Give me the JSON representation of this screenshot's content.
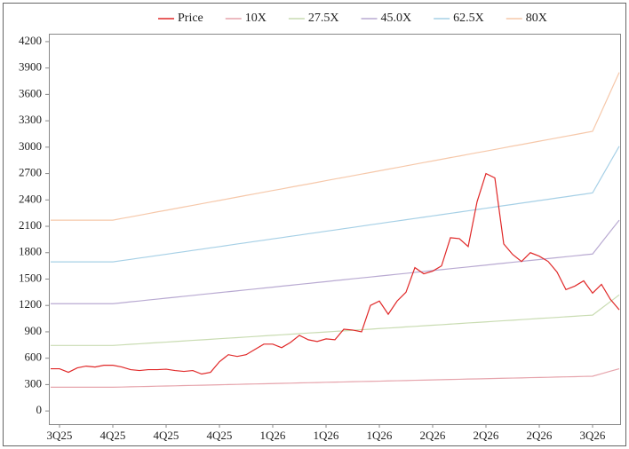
{
  "chart_data": {
    "type": "line",
    "categories": [
      null,
      "3Q25",
      null,
      null,
      null,
      null,
      null,
      "4Q25",
      null,
      null,
      null,
      null,
      null,
      "4Q25",
      null,
      null,
      null,
      null,
      null,
      "4Q25",
      null,
      null,
      null,
      null,
      null,
      "1Q26",
      null,
      null,
      null,
      null,
      null,
      "1Q26",
      null,
      null,
      null,
      null,
      null,
      "1Q26",
      null,
      null,
      null,
      null,
      null,
      "2Q26",
      null,
      null,
      null,
      null,
      null,
      "2Q26",
      null,
      null,
      null,
      null,
      null,
      "2Q26",
      null,
      null,
      null,
      null,
      null,
      "3Q26",
      null,
      null,
      null
    ],
    "series": [
      {
        "name": "Price",
        "color": "#e02828",
        "values": [
          480,
          480,
          440,
          490,
          510,
          500,
          520,
          520,
          500,
          470,
          460,
          470,
          470,
          475,
          460,
          450,
          460,
          420,
          440,
          560,
          640,
          620,
          640,
          700,
          760,
          760,
          720,
          780,
          860,
          810,
          790,
          820,
          810,
          930,
          920,
          900,
          1200,
          1250,
          1100,
          1250,
          1350,
          1630,
          1560,
          1590,
          1650,
          1970,
          1960,
          1870,
          2380,
          2700,
          2650,
          1900,
          1780,
          1700,
          1800,
          1760,
          1700,
          1580,
          1380,
          1420,
          1480,
          1340,
          1440,
          1270,
          1150
        ]
      },
      {
        "name": "10X",
        "color": "#e6a4ac",
        "values": [
          270,
          270,
          270,
          270,
          270,
          270,
          270,
          270,
          272,
          275,
          277,
          279,
          282,
          284,
          286,
          289,
          291,
          293,
          295,
          298,
          300,
          302,
          305,
          307,
          309,
          312,
          314,
          316,
          319,
          321,
          323,
          326,
          328,
          330,
          333,
          335,
          337,
          339,
          342,
          344,
          346,
          349,
          351,
          353,
          356,
          358,
          360,
          363,
          365,
          367,
          370,
          372,
          374,
          376,
          379,
          381,
          383,
          386,
          388,
          390,
          393,
          395,
          423,
          452,
          480
        ]
      },
      {
        "name": "27.5X",
        "color": "#c9dcb2",
        "values": [
          745,
          745,
          745,
          745,
          745,
          745,
          745,
          745,
          751,
          758,
          764,
          771,
          777,
          783,
          790,
          796,
          803,
          809,
          815,
          822,
          828,
          834,
          841,
          847,
          854,
          860,
          866,
          873,
          879,
          886,
          892,
          898,
          905,
          911,
          917,
          924,
          930,
          937,
          943,
          949,
          956,
          962,
          969,
          975,
          981,
          988,
          994,
          1001,
          1007,
          1013,
          1020,
          1026,
          1032,
          1039,
          1045,
          1052,
          1058,
          1064,
          1071,
          1077,
          1084,
          1090,
          1167,
          1243,
          1320
        ]
      },
      {
        "name": "45.0X",
        "color": "#b9aad2",
        "values": [
          1220,
          1220,
          1220,
          1220,
          1220,
          1220,
          1220,
          1220,
          1230,
          1241,
          1251,
          1262,
          1272,
          1283,
          1293,
          1304,
          1314,
          1325,
          1335,
          1346,
          1356,
          1366,
          1377,
          1387,
          1398,
          1408,
          1419,
          1429,
          1440,
          1450,
          1461,
          1471,
          1482,
          1492,
          1503,
          1513,
          1523,
          1534,
          1544,
          1555,
          1565,
          1576,
          1586,
          1597,
          1607,
          1618,
          1628,
          1638,
          1649,
          1659,
          1670,
          1680,
          1691,
          1701,
          1712,
          1722,
          1733,
          1743,
          1754,
          1764,
          1775,
          1785,
          1913,
          2042,
          2170
        ]
      },
      {
        "name": "62.5X",
        "color": "#a6d0e6",
        "values": [
          1695,
          1695,
          1695,
          1695,
          1695,
          1695,
          1695,
          1695,
          1710,
          1724,
          1739,
          1753,
          1768,
          1782,
          1797,
          1811,
          1826,
          1840,
          1855,
          1869,
          1884,
          1899,
          1913,
          1928,
          1942,
          1957,
          1971,
          1986,
          2000,
          2015,
          2029,
          2044,
          2058,
          2073,
          2087,
          2102,
          2117,
          2131,
          2146,
          2160,
          2175,
          2189,
          2204,
          2218,
          2233,
          2247,
          2262,
          2276,
          2291,
          2305,
          2320,
          2335,
          2349,
          2364,
          2378,
          2393,
          2407,
          2422,
          2436,
          2451,
          2465,
          2480,
          2657,
          2833,
          3010
        ]
      },
      {
        "name": "80X",
        "color": "#f6c8aa",
        "values": [
          2170,
          2170,
          2170,
          2170,
          2170,
          2170,
          2170,
          2170,
          2189,
          2207,
          2226,
          2245,
          2264,
          2282,
          2301,
          2320,
          2338,
          2357,
          2376,
          2394,
          2413,
          2432,
          2451,
          2469,
          2488,
          2507,
          2525,
          2544,
          2563,
          2581,
          2600,
          2619,
          2638,
          2656,
          2675,
          2694,
          2712,
          2731,
          2750,
          2768,
          2787,
          2806,
          2825,
          2843,
          2862,
          2881,
          2899,
          2918,
          2937,
          2955,
          2974,
          2993,
          3012,
          3030,
          3049,
          3068,
          3086,
          3105,
          3124,
          3142,
          3161,
          3180,
          3403,
          3627,
          3850
        ]
      }
    ],
    "ylim": [
      -150,
      4290
    ],
    "yticks": [
      0,
      300,
      600,
      900,
      1200,
      1500,
      1800,
      2100,
      2400,
      2700,
      3000,
      3300,
      3600,
      3900,
      4200
    ],
    "legend": "top"
  }
}
